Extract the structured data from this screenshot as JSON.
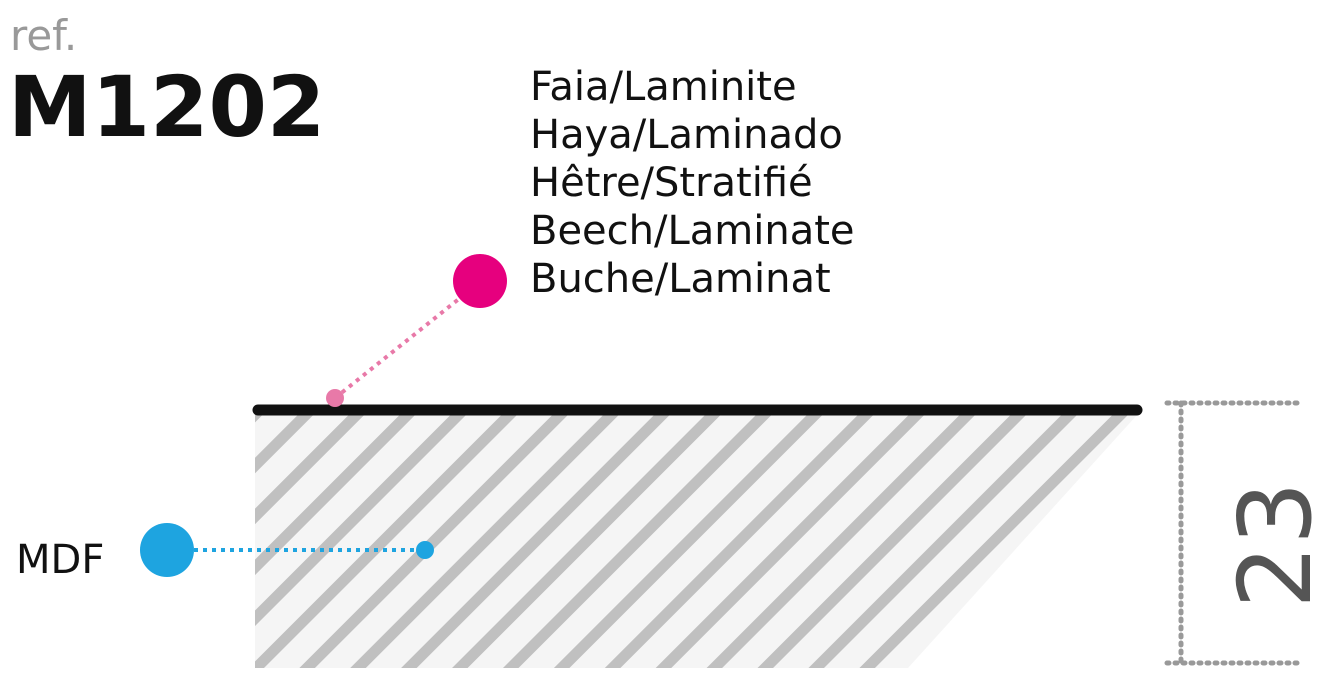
{
  "ref_label": "ref.",
  "code": "M1202",
  "materials": [
    "Faia/Laminite",
    "Haya/Laminado",
    "Hêtre/Stratifié",
    "Beech/Laminate",
    "Buche/Laminat"
  ],
  "core_label": "MDF",
  "dimension": "23"
}
